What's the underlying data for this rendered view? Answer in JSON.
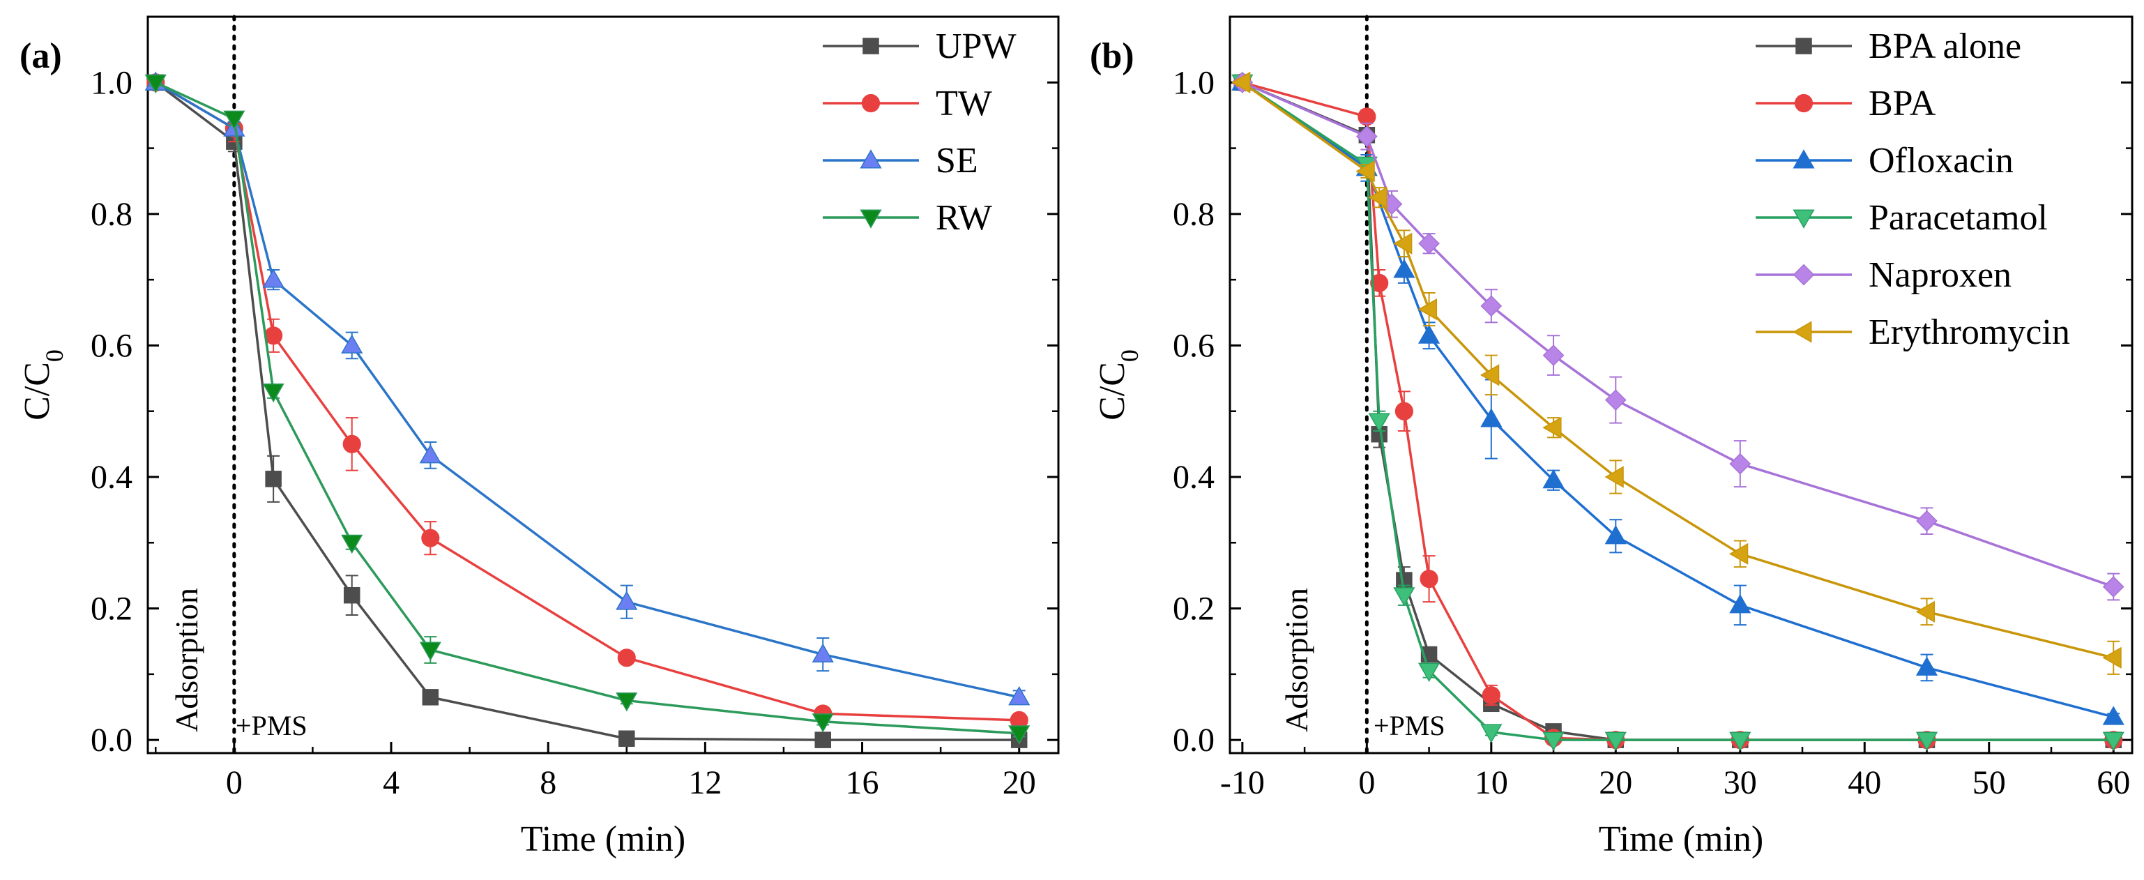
{
  "chart_data": [
    {
      "panel_label": "(a)",
      "type": "line",
      "xlabel": "Time (min)",
      "ylabel_main": "C/C",
      "ylabel_sub": "0",
      "xlim": [
        -2.2,
        21
      ],
      "ylim": [
        -0.02,
        1.1
      ],
      "xticks": [
        0,
        4,
        8,
        12,
        16,
        20
      ],
      "yticks": [
        0.0,
        0.2,
        0.4,
        0.6,
        0.8,
        1.0
      ],
      "grid": false,
      "legend_position": "top-right",
      "annotations": {
        "adsorption": "Adsorption",
        "pms": "+PMS"
      },
      "series": [
        {
          "name": "UPW",
          "marker": "square",
          "color": "#4d4d4d",
          "x": [
            -2,
            0,
            1,
            3,
            5,
            10,
            15,
            20
          ],
          "y": [
            1.0,
            0.91,
            0.397,
            0.22,
            0.065,
            0.002,
            0.0,
            0.0
          ],
          "err": [
            0.005,
            0.015,
            0.035,
            0.03,
            0.005,
            0.0,
            0.0,
            0.0
          ]
        },
        {
          "name": "TW",
          "marker": "circle",
          "color": "#e8403f",
          "x": [
            -2,
            0,
            1,
            3,
            5,
            10,
            15,
            20
          ],
          "y": [
            1.0,
            0.93,
            0.615,
            0.45,
            0.307,
            0.125,
            0.04,
            0.03
          ],
          "err": [
            0.005,
            0.02,
            0.025,
            0.04,
            0.025,
            0.005,
            0.005,
            0.005
          ]
        },
        {
          "name": "SE",
          "marker": "triangle-up",
          "color": "#2b75c9",
          "fill": "#6b7ff2",
          "x": [
            -2,
            0,
            1,
            3,
            5,
            10,
            15,
            20
          ],
          "y": [
            1.0,
            0.93,
            0.7,
            0.6,
            0.433,
            0.21,
            0.13,
            0.065
          ],
          "err": [
            0.005,
            0.01,
            0.015,
            0.02,
            0.02,
            0.025,
            0.025,
            0.01
          ]
        },
        {
          "name": "RW",
          "marker": "triangle-down",
          "color": "#2c9a5a",
          "fill": "#0c8a1c",
          "x": [
            -2,
            0,
            1,
            3,
            5,
            10,
            15,
            20
          ],
          "y": [
            1.0,
            0.945,
            0.53,
            0.3,
            0.137,
            0.06,
            0.028,
            0.01
          ],
          "err": [
            0.005,
            0.01,
            0.01,
            0.01,
            0.02,
            0.005,
            0.005,
            0.005
          ]
        }
      ]
    },
    {
      "panel_label": "(b)",
      "type": "line",
      "xlabel": "Time (min)",
      "ylabel_main": "C/C",
      "ylabel_sub": "0",
      "xlim": [
        -11,
        61.5
      ],
      "ylim": [
        -0.02,
        1.1
      ],
      "xticks": [
        -10,
        0,
        10,
        20,
        30,
        40,
        50,
        60
      ],
      "yticks": [
        0.0,
        0.2,
        0.4,
        0.6,
        0.8,
        1.0
      ],
      "grid": false,
      "legend_position": "top-right",
      "annotations": {
        "adsorption": "Adsorption",
        "pms": "+PMS"
      },
      "series": [
        {
          "name": "BPA alone",
          "marker": "square",
          "color": "#4d4d4d",
          "x": [
            -10,
            0,
            1,
            3,
            5,
            10,
            15,
            20,
            30,
            45,
            60
          ],
          "y": [
            1.0,
            0.92,
            0.465,
            0.243,
            0.13,
            0.055,
            0.013,
            0.0,
            0.0,
            0.0,
            0.0
          ],
          "err": [
            0.005,
            0.01,
            0.02,
            0.02,
            0.01,
            0.005,
            0.005,
            0.0,
            0.0,
            0.0,
            0.0
          ]
        },
        {
          "name": "BPA",
          "marker": "circle",
          "color": "#e8403f",
          "x": [
            -10,
            0,
            1,
            3,
            5,
            10,
            15,
            20,
            30,
            45,
            60
          ],
          "y": [
            1.0,
            0.948,
            0.695,
            0.5,
            0.245,
            0.068,
            0.003,
            0.0,
            0.0,
            0.0,
            0.0
          ],
          "err": [
            0.005,
            0.01,
            0.02,
            0.03,
            0.035,
            0.015,
            0.003,
            0.0,
            0.0,
            0.0,
            0.0
          ]
        },
        {
          "name": "Ofloxacin",
          "marker": "triangle-up",
          "color": "#1f6fd1",
          "x": [
            -10,
            0,
            3,
            5,
            10,
            15,
            20,
            30,
            45,
            60
          ],
          "y": [
            1.0,
            0.87,
            0.715,
            0.615,
            0.488,
            0.395,
            0.31,
            0.205,
            0.11,
            0.035
          ],
          "err": [
            0.005,
            0.02,
            0.02,
            0.02,
            0.06,
            0.015,
            0.025,
            0.03,
            0.02,
            0.005
          ]
        },
        {
          "name": "Paracetamol",
          "marker": "triangle-down",
          "color": "#27a060",
          "fill": "#3fc07a",
          "x": [
            -10,
            0,
            1,
            3,
            5,
            10,
            15,
            20,
            30,
            45,
            60
          ],
          "y": [
            1.0,
            0.875,
            0.485,
            0.22,
            0.105,
            0.012,
            0.0,
            0.0,
            0.0,
            0.0,
            0.0
          ],
          "err": [
            0.005,
            0.01,
            0.015,
            0.015,
            0.01,
            0.005,
            0.0,
            0.0,
            0.0,
            0.0,
            0.0
          ]
        },
        {
          "name": "Naproxen",
          "marker": "diamond",
          "color": "#a773d8",
          "fill": "#b884e8",
          "x": [
            -10,
            0,
            2,
            5,
            10,
            15,
            20,
            30,
            45,
            60
          ],
          "y": [
            1.0,
            0.918,
            0.815,
            0.755,
            0.66,
            0.585,
            0.517,
            0.42,
            0.333,
            0.233
          ],
          "err": [
            0.005,
            0.02,
            0.02,
            0.015,
            0.025,
            0.03,
            0.035,
            0.035,
            0.02,
            0.02
          ]
        },
        {
          "name": "Erythromycin",
          "marker": "triangle-left",
          "color": "#c9960a",
          "fill": "#d6a312",
          "x": [
            -10,
            0,
            1,
            3,
            5,
            10,
            15,
            20,
            30,
            45,
            60
          ],
          "y": [
            1.0,
            0.865,
            0.825,
            0.755,
            0.655,
            0.555,
            0.475,
            0.4,
            0.283,
            0.195,
            0.125
          ],
          "err": [
            0.005,
            0.01,
            0.015,
            0.02,
            0.025,
            0.03,
            0.015,
            0.025,
            0.02,
            0.02,
            0.025
          ]
        }
      ]
    }
  ]
}
